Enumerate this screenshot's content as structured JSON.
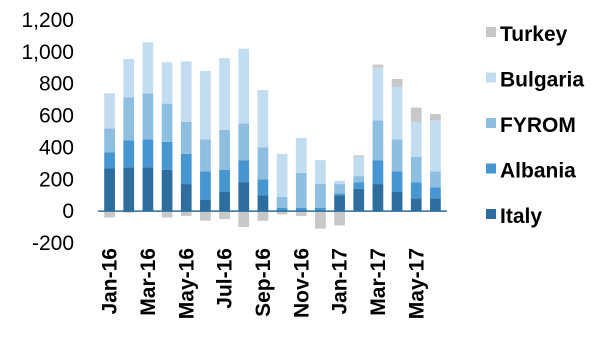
{
  "chart_data": {
    "type": "bar",
    "stacked": true,
    "title": "",
    "xlabel": "",
    "ylabel": "",
    "ylim": [
      -200,
      1200
    ],
    "yticks": [
      -200,
      0,
      200,
      400,
      600,
      800,
      1000,
      1200
    ],
    "ytick_labels": [
      "-200",
      "0",
      "200",
      "400",
      "600",
      "800",
      "1,000",
      "1,200"
    ],
    "xtick_labels": [
      "Jan-16",
      "Mar-16",
      "May-16",
      "Jul-16",
      "Sep-16",
      "Nov-16",
      "Jan-17",
      "Mar-17",
      "May-17"
    ],
    "xtick_every": 2,
    "legend_position": "right",
    "grid": false,
    "categories": [
      "Jan-16",
      "Feb-16",
      "Mar-16",
      "Apr-16",
      "May-16",
      "Jun-16",
      "Jul-16",
      "Aug-16",
      "Sep-16",
      "Oct-16",
      "Nov-16",
      "Dec-16",
      "Jan-17",
      "Feb-17",
      "Mar-17",
      "Apr-17",
      "May-17",
      "Jun-17"
    ],
    "series": [
      {
        "name": "Italy",
        "color": "#2d6e9e",
        "values": [
          270,
          275,
          275,
          260,
          170,
          70,
          120,
          180,
          100,
          0,
          0,
          0,
          100,
          140,
          170,
          120,
          80,
          80
        ]
      },
      {
        "name": "Albania",
        "color": "#4596d1",
        "values": [
          100,
          170,
          175,
          175,
          190,
          180,
          140,
          140,
          100,
          20,
          20,
          20,
          10,
          40,
          150,
          130,
          100,
          70
        ]
      },
      {
        "name": "FYROM",
        "color": "#8fbfe0",
        "values": [
          150,
          270,
          290,
          240,
          200,
          200,
          250,
          230,
          200,
          70,
          220,
          150,
          60,
          40,
          250,
          200,
          160,
          100
        ]
      },
      {
        "name": "Bulgaria",
        "color": "#c3ddf0",
        "values": [
          220,
          240,
          320,
          260,
          380,
          430,
          450,
          470,
          360,
          270,
          220,
          150,
          20,
          120,
          330,
          330,
          220,
          320
        ]
      },
      {
        "name": "Turkey",
        "color": "#c8c8c8",
        "values": [
          -40,
          -10,
          0,
          -40,
          -30,
          -60,
          -50,
          -100,
          -60,
          -20,
          -30,
          -110,
          -90,
          10,
          20,
          50,
          90,
          40
        ]
      }
    ]
  }
}
